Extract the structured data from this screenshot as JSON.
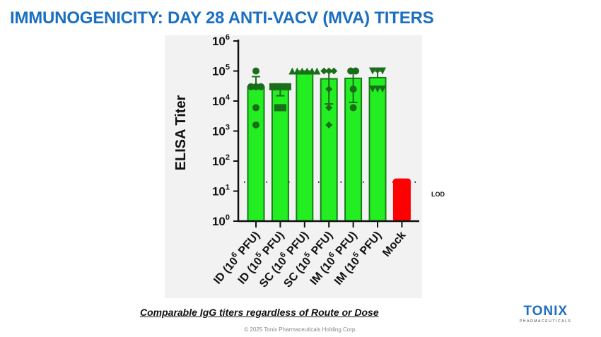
{
  "title": "IMMUNOGENICITY: DAY 28 ANTI-VACV (MVA) TITERS",
  "caption": "Comparable IgG titers regardless of Route or Dose",
  "copyright": "© 2025 Tonix Pharmaceuticals Holding Corp.",
  "logo": {
    "name": "TONIX",
    "sub": "PHARMACEUTICALS"
  },
  "colors": {
    "title": "#1a6fc0",
    "bar": "#22ee22",
    "bar_edge": "#1a7a1a",
    "point": "#1a6e1a",
    "mock": "#ff0000"
  },
  "chart_data": {
    "type": "bar",
    "ylabel": "ELISA Titer",
    "yscale": "log",
    "ylim": [
      1,
      1000000
    ],
    "yticks": [
      {
        "base": "10",
        "exp": "0"
      },
      {
        "base": "10",
        "exp": "1"
      },
      {
        "base": "10",
        "exp": "2"
      },
      {
        "base": "10",
        "exp": "3"
      },
      {
        "base": "10",
        "exp": "4"
      },
      {
        "base": "10",
        "exp": "5"
      },
      {
        "base": "10",
        "exp": "6"
      }
    ],
    "lod": {
      "label": "LOD",
      "value": 20
    },
    "categories": [
      {
        "pre": "ID (10",
        "exp": "6",
        "post": " PFU)"
      },
      {
        "pre": "ID (10",
        "exp": "5",
        "post": " PFU)"
      },
      {
        "pre": "SC (10",
        "exp": "6",
        "post": " PFU)"
      },
      {
        "pre": "SC (10",
        "exp": "5",
        "post": " PFU)"
      },
      {
        "pre": "IM (10",
        "exp": "6",
        "post": " PFU)"
      },
      {
        "pre": "IM (10",
        "exp": "5",
        "post": " PFU)"
      },
      {
        "pre": "Mock",
        "exp": "",
        "post": ""
      }
    ],
    "values": [
      30000,
      30000,
      100000,
      55000,
      57000,
      60000,
      25
    ],
    "error_upper": [
      65000,
      30000,
      100000,
      95000,
      100000,
      100000,
      null
    ],
    "error_lower": [
      null,
      15000,
      null,
      8000,
      9000,
      null,
      null
    ],
    "markers": [
      "circle",
      "square",
      "triangle-up",
      "diamond",
      "hexagon",
      "triangle-down",
      null
    ],
    "points": [
      [
        100000,
        30000,
        30000,
        30000,
        6000,
        1600
      ],
      [
        30000,
        30000,
        30000,
        30000,
        6000,
        6000
      ],
      [
        100000,
        100000,
        100000,
        100000,
        100000,
        100000
      ],
      [
        100000,
        100000,
        100000,
        25000,
        6000,
        1600
      ],
      [
        100000,
        100000,
        25000,
        6000
      ],
      [
        100000,
        100000,
        100000,
        25000,
        25000,
        25000
      ],
      []
    ]
  }
}
